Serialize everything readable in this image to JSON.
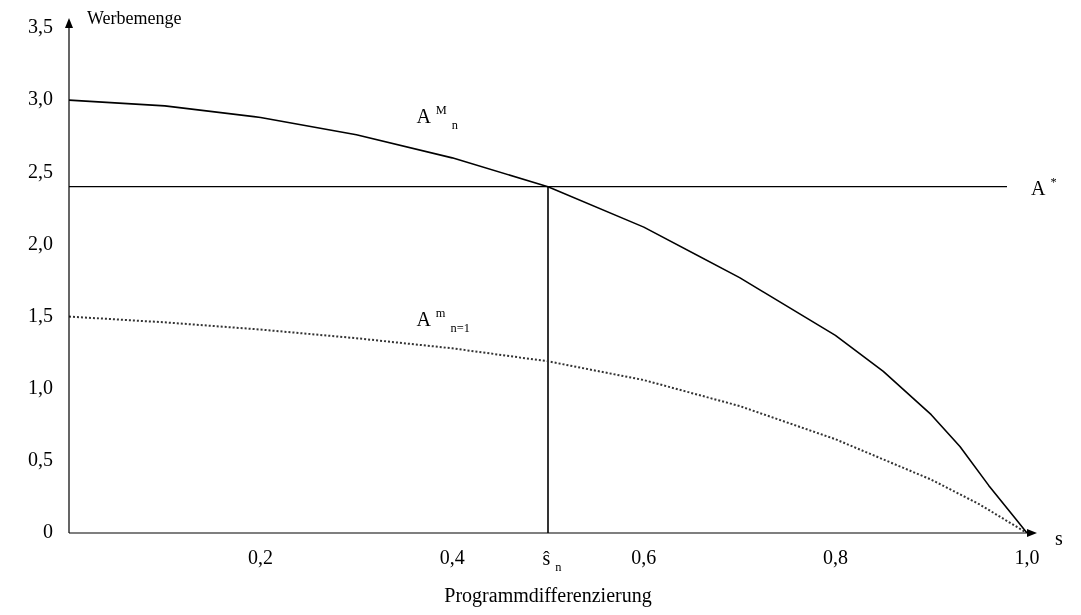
{
  "chart_data": {
    "type": "line",
    "xlabel": "Programmdifferenzierung",
    "ylabel": "Werbemenge",
    "xlim": [
      0,
      1.0
    ],
    "xticks": [
      {
        "value": 0.2,
        "label": "0,2"
      },
      {
        "value": 0.4,
        "label": "0,4"
      },
      {
        "value": 0.6,
        "label": "0,6"
      },
      {
        "value": 0.8,
        "label": "0,8"
      },
      {
        "value": 1.0,
        "label": "1,0"
      }
    ],
    "ylim": [
      0,
      3.5
    ],
    "yticks": [
      {
        "value": 0,
        "label": "0"
      },
      {
        "value": 0.5,
        "label": "0,5"
      },
      {
        "value": 1.0,
        "label": "1,0"
      },
      {
        "value": 1.5,
        "label": "1,5"
      },
      {
        "value": 2.0,
        "label": "2,0"
      },
      {
        "value": 2.5,
        "label": "2,5"
      },
      {
        "value": 3.0,
        "label": "3,0"
      },
      {
        "value": 3.5,
        "label": "3,5"
      }
    ],
    "grid": false,
    "legend": false,
    "marker": "none",
    "series": [
      {
        "name": "A $^{M}$ $_{n}$",
        "color": "#000000",
        "line_style": "solid",
        "x": [
          0,
          0.1,
          0.2,
          0.3,
          0.4,
          0.5,
          0.6,
          0.7,
          0.8,
          0.85,
          0.9,
          0.93,
          0.96,
          1.0
        ],
        "values": [
          3.0,
          2.96,
          2.88,
          2.76,
          2.6,
          2.4,
          2.12,
          1.77,
          1.37,
          1.12,
          0.82,
          0.6,
          0.33,
          0
        ]
      },
      {
        "name": "A $^{m}$ $_{n=1}$",
        "color": "#333333",
        "line_style": "dotted",
        "x": [
          0,
          0.1,
          0.2,
          0.3,
          0.4,
          0.5,
          0.6,
          0.7,
          0.8,
          0.9,
          0.95,
          1.0
        ],
        "values": [
          1.5,
          1.46,
          1.41,
          1.35,
          1.28,
          1.19,
          1.06,
          0.88,
          0.65,
          0.37,
          0.2,
          0
        ]
      },
      {
        "color": "#000000",
        "line_style": "solid",
        "x": [
          0.5,
          0.5
        ],
        "values": [
          0,
          2.4
        ]
      }
    ],
    "ref_lines": [
      {
        "axis": "y",
        "value": 2.4,
        "label": "A $^{*}$"
      }
    ],
    "annotations": [
      {
        "text": "ŝ $_{n}$",
        "x": 0.5,
        "y": 0
      },
      "s"
    ]
  }
}
